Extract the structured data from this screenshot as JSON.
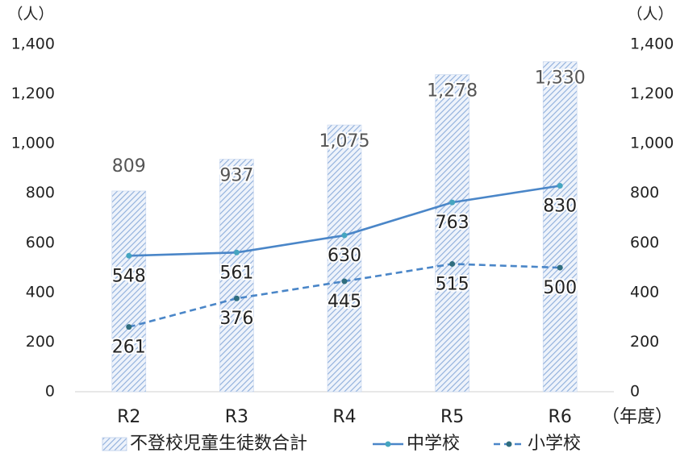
{
  "chart_data": {
    "type": "bar",
    "categories": [
      "R2",
      "R3",
      "R4",
      "R5",
      "R6"
    ],
    "ylabel": "（人）",
    "y2label": "（人）",
    "xlabel": "（年度）",
    "ylim": [
      0,
      1400
    ],
    "yticks": [
      0,
      200,
      400,
      600,
      800,
      {
        "value": 1000,
        "label": "1,000"
      },
      {
        "value": 1200,
        "label": "1,200"
      },
      {
        "value": 1400,
        "label": "1,400"
      }
    ],
    "y2lim": [
      0,
      1400
    ],
    "y2ticks": [
      0,
      200,
      400,
      600,
      800,
      {
        "value": 1000,
        "label": "1,000"
      },
      {
        "value": 1200,
        "label": "1,200"
      },
      {
        "value": 1400,
        "label": "1,400"
      }
    ],
    "series": [
      {
        "name": "不登校児童生徒数合計",
        "type": "bar",
        "color": "#8eaedb",
        "values": [
          809,
          937,
          1075,
          1278,
          1330
        ],
        "value_labels": [
          "809",
          "937",
          "1,075",
          "1,278",
          "1,330"
        ]
      },
      {
        "name": "中学校",
        "type": "line",
        "line_style": "solid",
        "color": "#4a86c8",
        "marker_color": "#45a5c0",
        "values": [
          548,
          561,
          630,
          763,
          830
        ]
      },
      {
        "name": "小学校",
        "type": "line",
        "line_style": "dashed",
        "color": "#4a86c8",
        "marker_color": "#2f6d7e",
        "values": [
          261,
          376,
          445,
          515,
          500
        ]
      }
    ]
  }
}
